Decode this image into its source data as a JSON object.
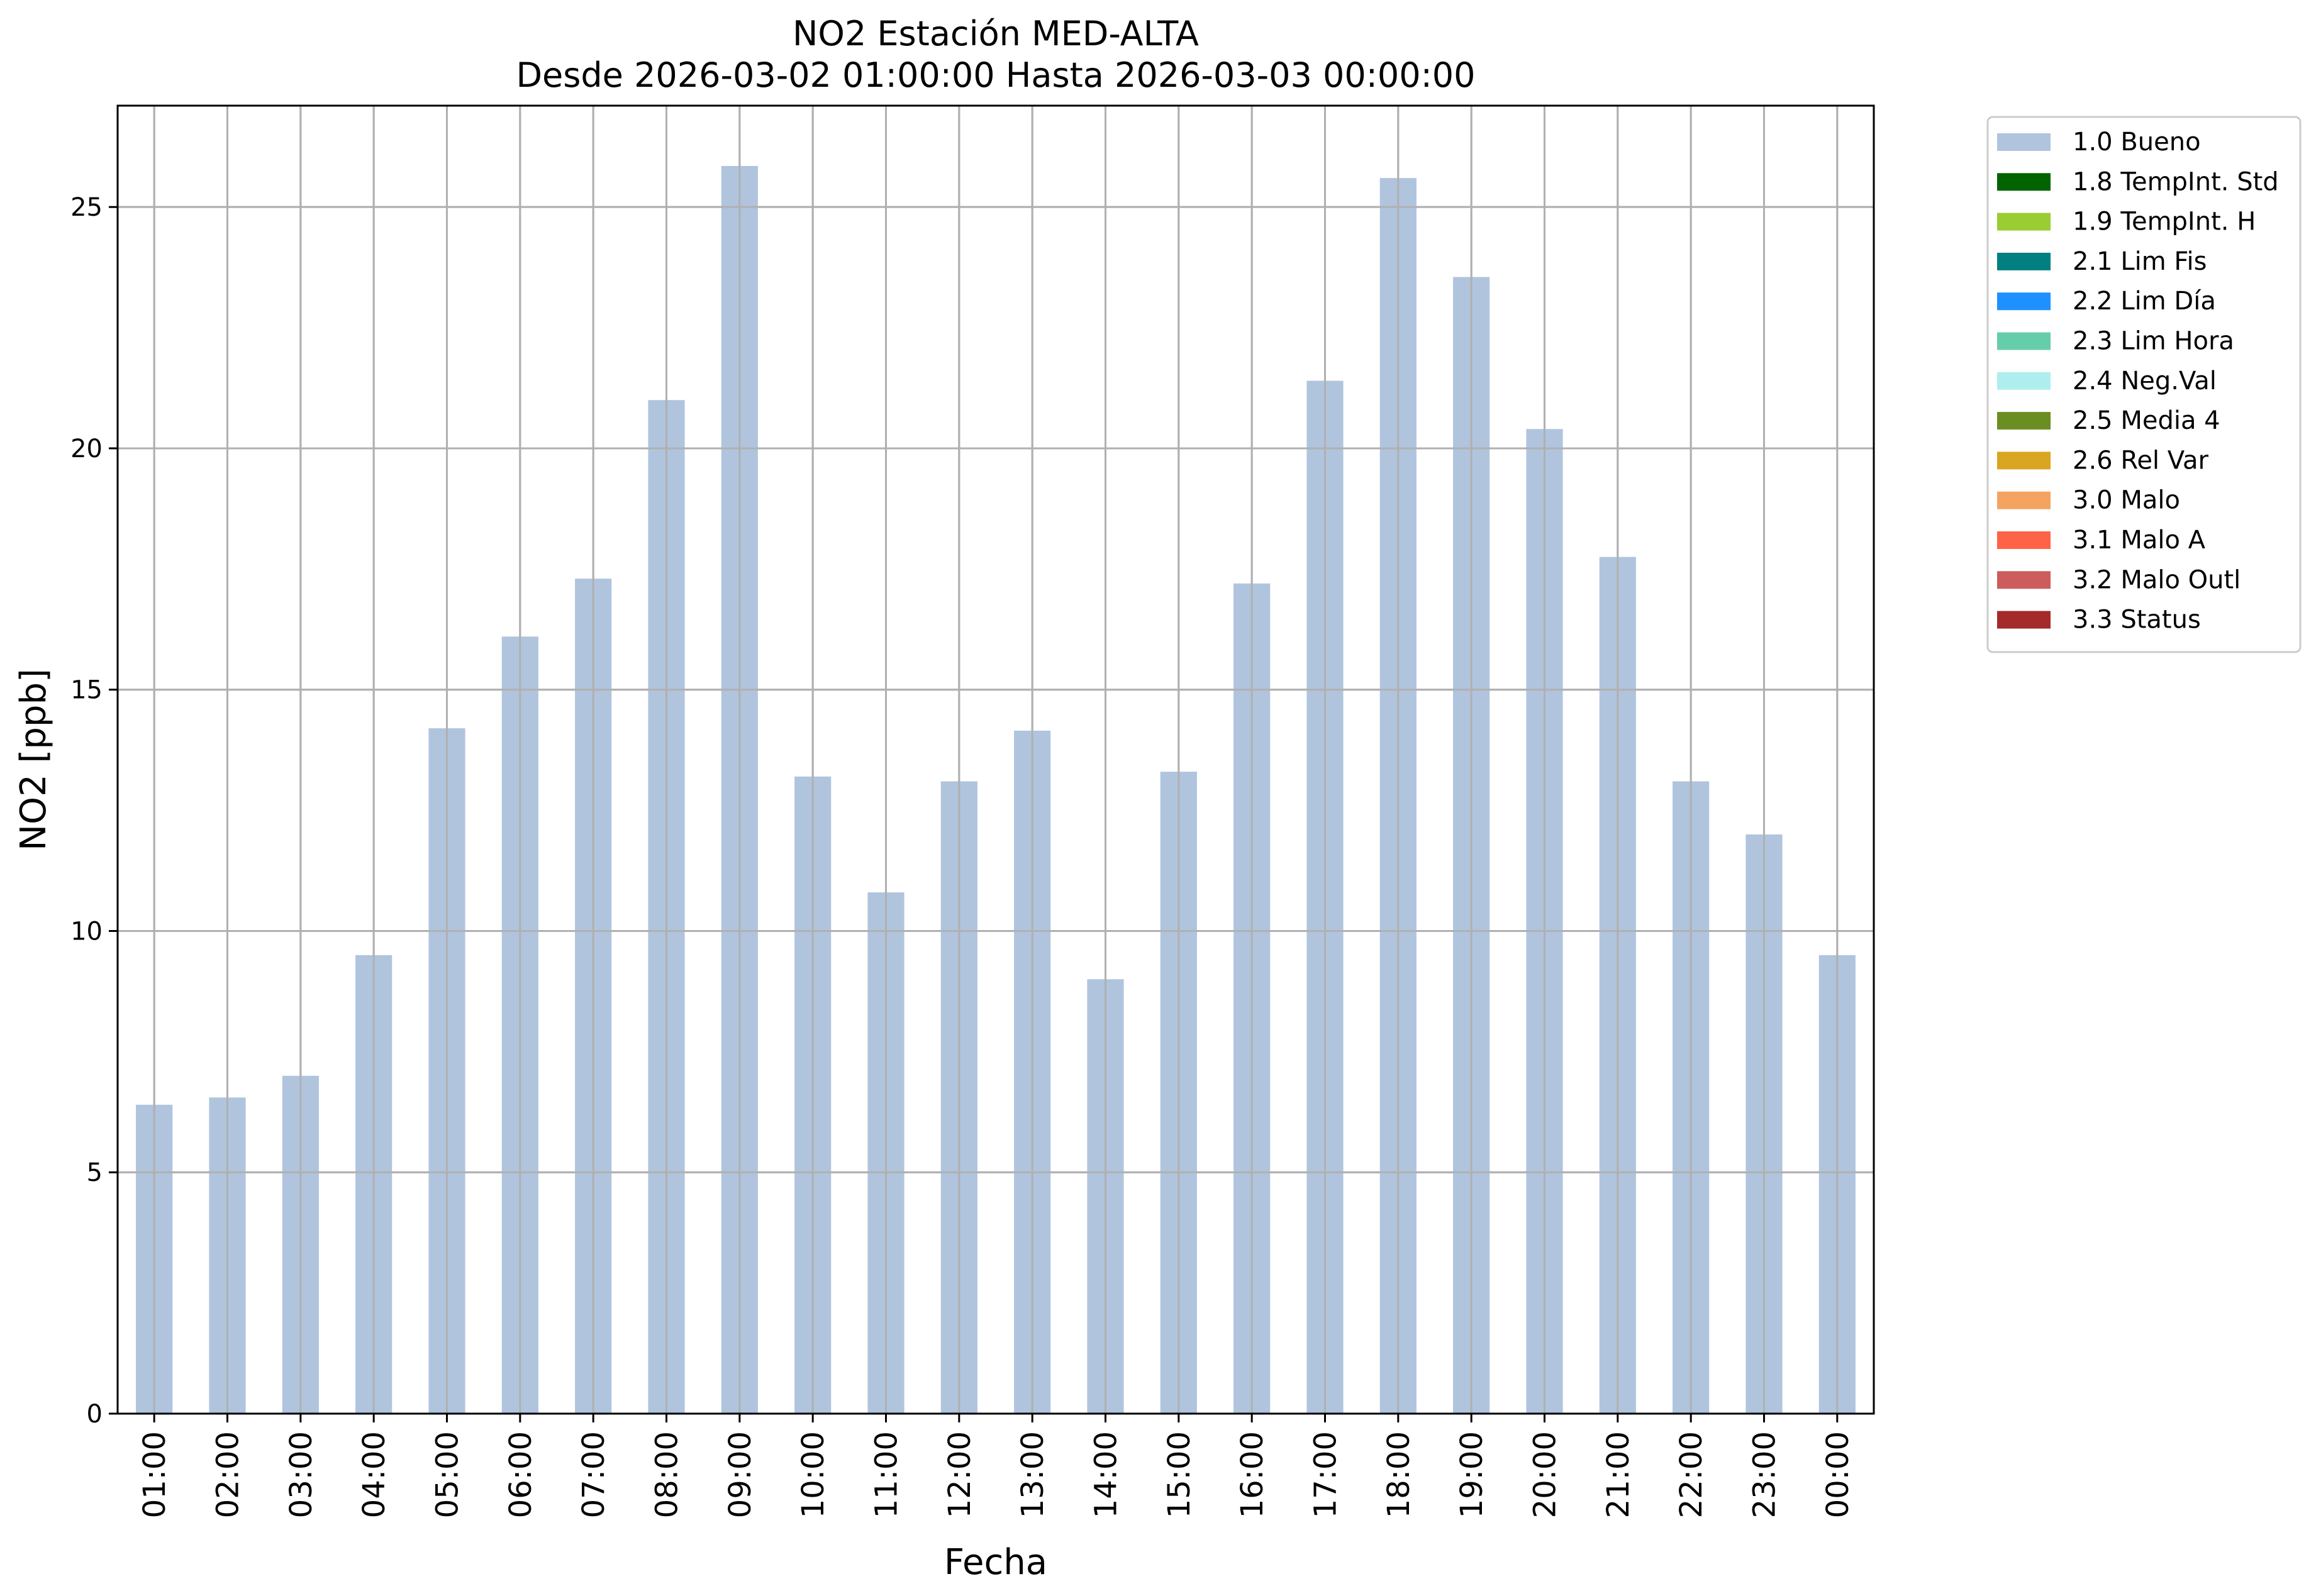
{
  "chart_data": {
    "type": "bar",
    "title": "NO2 Estación MED-ALTA",
    "subtitle": "Desde 2026-03-02 01:00:00 Hasta 2026-03-03 00:00:00",
    "xlabel": "Fecha",
    "ylabel": "NO2 [ppb]",
    "ylim": [
      0,
      27.1
    ],
    "yticks": [
      0,
      5,
      10,
      15,
      20,
      25
    ],
    "grid": true,
    "legend_placement": "outside-top-right",
    "categories": [
      "01:00",
      "02:00",
      "03:00",
      "04:00",
      "05:00",
      "06:00",
      "07:00",
      "08:00",
      "09:00",
      "10:00",
      "11:00",
      "12:00",
      "13:00",
      "14:00",
      "15:00",
      "16:00",
      "17:00",
      "18:00",
      "19:00",
      "20:00",
      "21:00",
      "22:00",
      "23:00",
      "00:00"
    ],
    "series": [
      {
        "name": "1.0 Bueno",
        "color": "#b0c4de",
        "values": [
          6.4,
          6.55,
          7.0,
          9.5,
          14.2,
          16.1,
          17.3,
          21.0,
          25.85,
          13.2,
          10.8,
          13.1,
          14.15,
          9.0,
          13.3,
          17.2,
          21.4,
          25.6,
          23.55,
          20.4,
          17.75,
          13.1,
          12.0,
          9.5
        ]
      }
    ],
    "legend": [
      {
        "label": "1.0 Bueno",
        "color": "#b0c4de"
      },
      {
        "label": "1.8 TempInt. Std",
        "color": "#006400"
      },
      {
        "label": "1.9 TempInt. H",
        "color": "#9acd32"
      },
      {
        "label": "2.1 Lim Fis",
        "color": "#008080"
      },
      {
        "label": "2.2 Lim Día",
        "color": "#1e90ff"
      },
      {
        "label": "2.3 Lim Hora",
        "color": "#66cdaa"
      },
      {
        "label": "2.4 Neg.Val",
        "color": "#afeeee"
      },
      {
        "label": "2.5 Media 4",
        "color": "#6b8e23"
      },
      {
        "label": "2.6 Rel Var",
        "color": "#daa520"
      },
      {
        "label": "3.0 Malo",
        "color": "#f4a460"
      },
      {
        "label": "3.1 Malo A",
        "color": "#ff6347"
      },
      {
        "label": "3.2 Malo Outl",
        "color": "#cd5c5c"
      },
      {
        "label": "3.3 Status",
        "color": "#a52a2a"
      }
    ]
  }
}
